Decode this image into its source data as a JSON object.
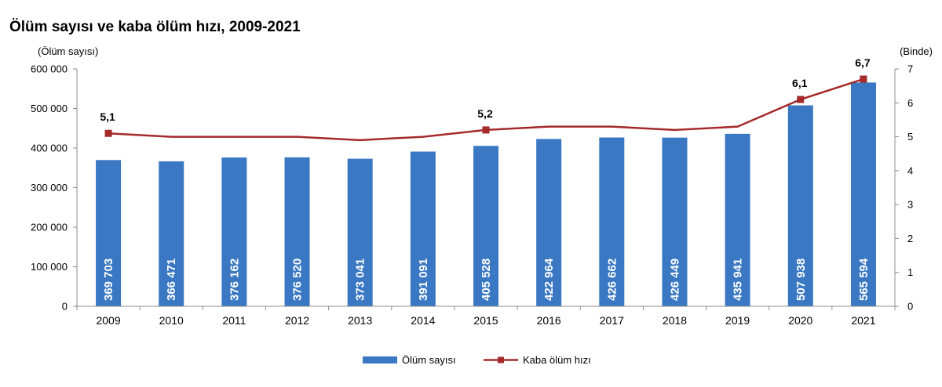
{
  "chart_data": {
    "type": "bar",
    "title": "Ölüm sayısı ve kaba ölüm hızı, 2009-2021",
    "y_left_unit": "(Ölüm sayısı)",
    "y_right_unit": "(Binde)",
    "y_left_lim": [
      0,
      600000
    ],
    "y_left_ticks": [
      "0",
      "100 000",
      "200 000",
      "300 000",
      "400 000",
      "500 000",
      "600 000"
    ],
    "y_right_lim": [
      0,
      7
    ],
    "y_right_ticks": [
      "0",
      "1",
      "2",
      "3",
      "4",
      "5",
      "6",
      "7"
    ],
    "categories": [
      "2009",
      "2010",
      "2011",
      "2012",
      "2013",
      "2014",
      "2015",
      "2016",
      "2017",
      "2018",
      "2019",
      "2020",
      "2021"
    ],
    "series": [
      {
        "name": "Ölüm sayısı",
        "type": "bar",
        "axis": "left",
        "color": "#3a78c3",
        "values": [
          369703,
          366471,
          376162,
          376520,
          373041,
          391091,
          405528,
          422964,
          426662,
          426449,
          435941,
          507938,
          565594
        ],
        "labels": [
          "369 703",
          "366 471",
          "376 162",
          "376 520",
          "373 041",
          "391 091",
          "405 528",
          "422 964",
          "426 662",
          "426 449",
          "435 941",
          "507 938",
          "565 594"
        ]
      },
      {
        "name": "Kaba ölüm hızı",
        "type": "line",
        "axis": "right",
        "color": "#a52a2a",
        "values": [
          5.1,
          5.0,
          5.0,
          5.0,
          4.9,
          5.0,
          5.2,
          5.3,
          5.3,
          5.2,
          5.3,
          6.1,
          6.7
        ],
        "point_labels": [
          {
            "index": 0,
            "text": "5,1"
          },
          {
            "index": 6,
            "text": "5,2"
          },
          {
            "index": 11,
            "text": "6,1"
          },
          {
            "index": 12,
            "text": "6,7"
          }
        ]
      }
    ],
    "grid": false,
    "legend": "bottom-center"
  }
}
